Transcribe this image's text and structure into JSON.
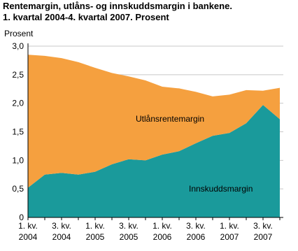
{
  "chart_data": {
    "type": "stacked_area",
    "title": [
      "Rentemargin, utlåns- og innskuddsmargin i bankene.",
      "1. kvartal 2004-4. kvartal 2007. Prosent"
    ],
    "y_label": "Prosent",
    "categories": [
      [
        "1. kv.",
        "2004"
      ],
      null,
      [
        "3. kv.",
        "2004"
      ],
      null,
      [
        "1. kv.",
        "2005"
      ],
      null,
      [
        "3. kv.",
        "2005"
      ],
      null,
      [
        "1. kv.",
        "2006"
      ],
      null,
      [
        "3. kv.",
        "2006"
      ],
      null,
      [
        "1. kv.",
        "2007"
      ],
      null,
      [
        "3. kv.",
        "2007"
      ],
      null
    ],
    "series": [
      {
        "name": "Innskuddsmargin",
        "color": "#1a9a9b",
        "values": [
          0.52,
          0.75,
          0.78,
          0.75,
          0.8,
          0.93,
          1.02,
          1.0,
          1.1,
          1.16,
          1.3,
          1.43,
          1.48,
          1.65,
          1.97,
          1.72
        ]
      },
      {
        "name": "Utlånsrentemargin",
        "color": "#f5a03f",
        "values": [
          2.33,
          2.08,
          2.01,
          1.97,
          1.82,
          1.6,
          1.45,
          1.4,
          1.19,
          1.1,
          0.9,
          0.69,
          0.67,
          0.58,
          0.25,
          0.55
        ]
      }
    ],
    "ylim": [
      0,
      3
    ],
    "yticks": [
      0,
      {
        "value": 0.5,
        "label": "0,5"
      },
      {
        "value": 1,
        "label": "1,0"
      },
      {
        "value": 1.5,
        "label": "1,5"
      },
      {
        "value": 2,
        "label": "2,0"
      },
      {
        "value": 2.5,
        "label": "2,5"
      },
      {
        "value": 3,
        "label": "3,0"
      }
    ],
    "grid": true
  }
}
